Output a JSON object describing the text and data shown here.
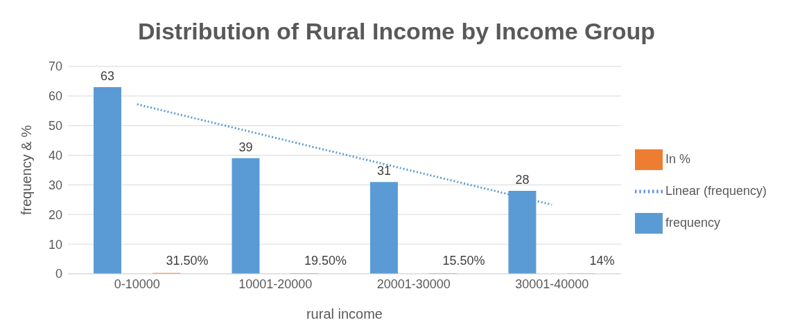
{
  "chart_data": {
    "type": "bar",
    "title": "Distribution of Rural Income by Income Group",
    "xlabel": "rural income",
    "ylabel": "frequency & %",
    "categories": [
      "0-10000",
      "10001-20000",
      "20001-30000",
      "30001-40000"
    ],
    "series": [
      {
        "name": "frequency",
        "color": "#5b9bd5",
        "values": [
          63,
          39,
          31,
          28
        ],
        "value_labels": [
          "63",
          "39",
          "31",
          "28"
        ]
      },
      {
        "name": "In %",
        "color": "#ed7d31",
        "values": [
          0.315,
          0.195,
          0.155,
          0.14
        ],
        "value_labels": [
          "31.50%",
          "19.50%",
          "15.50%",
          "14%"
        ]
      },
      {
        "name": "Linear (frequency)",
        "type": "line",
        "color": "#5b9bd5",
        "line_style": "dotted",
        "values": [
          57.2,
          45.9,
          34.6,
          23.3
        ]
      }
    ],
    "ylim": [
      0,
      70
    ],
    "yticks": [
      0,
      10,
      20,
      30,
      40,
      50,
      60,
      70
    ],
    "grid": "y",
    "legend": "right"
  }
}
